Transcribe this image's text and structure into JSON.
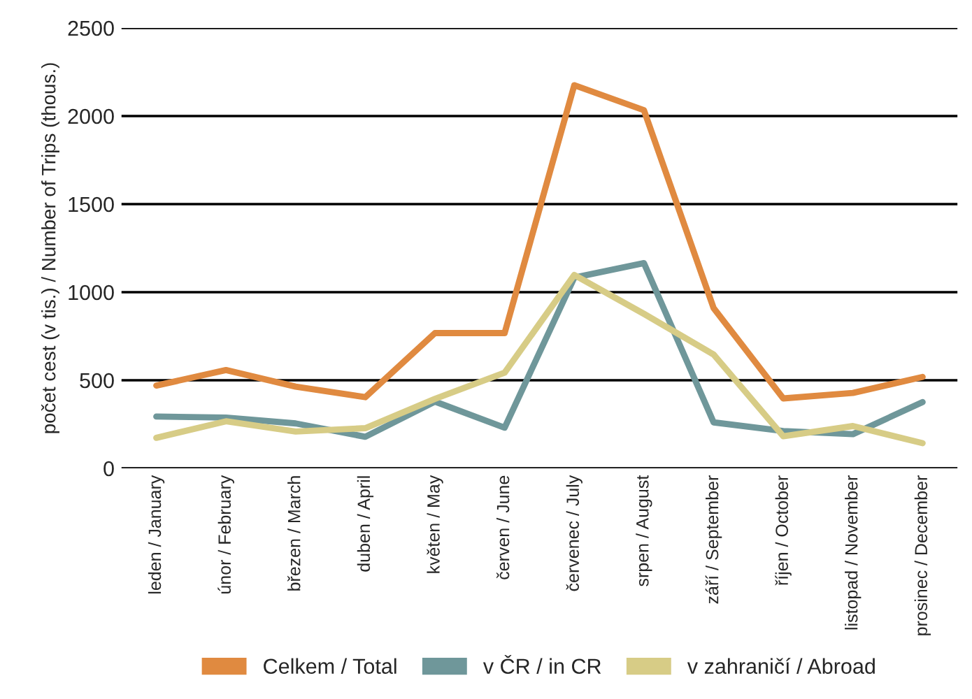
{
  "chart_data": {
    "type": "line",
    "ylabel": "počet cest (v tis.) / Number of Trips (thous.)",
    "categories": [
      "leden / January",
      "únor / February",
      "březen / March",
      "duben / April",
      "květen / May",
      "červen / June",
      "červenec / July",
      "srpen / August",
      "září / September",
      "říjen / October",
      "listopad / November",
      "prosinec / December"
    ],
    "series": [
      {
        "name": "Celkem / Total",
        "color": "#e08a40",
        "values": [
          470,
          558,
          464,
          404,
          768,
          768,
          2175,
          2033,
          910,
          397,
          428,
          519
        ]
      },
      {
        "name": "v ČR / in CR",
        "color": "#6f979a",
        "values": [
          294,
          288,
          255,
          179,
          379,
          231,
          1083,
          1165,
          261,
          212,
          194,
          376
        ]
      },
      {
        "name": "v zahraničí / Abroad",
        "color": "#d7cc86",
        "values": [
          173,
          267,
          209,
          228,
          394,
          543,
          1098,
          877,
          646,
          182,
          240,
          143
        ]
      }
    ],
    "ylim": [
      0,
      2500
    ],
    "yticks": [
      0,
      500,
      1000,
      1500,
      2000,
      2500
    ],
    "grid": "y",
    "legend": "bottom",
    "marker": "none",
    "line_style": "solid"
  }
}
